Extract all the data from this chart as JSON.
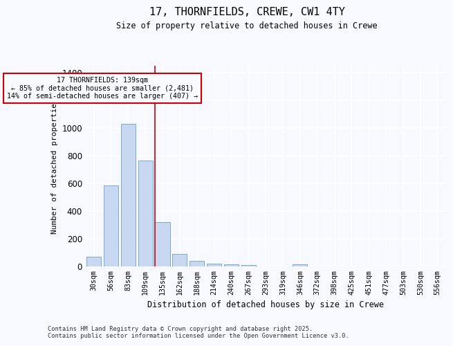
{
  "title_line1": "17, THORNFIELDS, CREWE, CW1 4TY",
  "title_line2": "Size of property relative to detached houses in Crewe",
  "xlabel": "Distribution of detached houses by size in Crewe",
  "ylabel": "Number of detached properties",
  "categories": [
    "30sqm",
    "56sqm",
    "83sqm",
    "109sqm",
    "135sqm",
    "162sqm",
    "188sqm",
    "214sqm",
    "240sqm",
    "267sqm",
    "293sqm",
    "319sqm",
    "346sqm",
    "372sqm",
    "398sqm",
    "425sqm",
    "451sqm",
    "477sqm",
    "503sqm",
    "530sqm",
    "556sqm"
  ],
  "values": [
    70,
    585,
    1030,
    765,
    320,
    90,
    40,
    22,
    13,
    8,
    0,
    0,
    14,
    0,
    0,
    0,
    0,
    0,
    0,
    0,
    0
  ],
  "bar_color": "#c8d8f0",
  "bar_edgecolor": "#7aaad0",
  "vline_x_index": 4,
  "vline_color": "#cc0000",
  "annotation_line1": "17 THORNFIELDS: 139sqm",
  "annotation_line2": "← 85% of detached houses are smaller (2,481)",
  "annotation_line3": "14% of semi-detached houses are larger (407) →",
  "annotation_box_color": "#cc0000",
  "ylim": [
    0,
    1450
  ],
  "yticks": [
    0,
    200,
    400,
    600,
    800,
    1000,
    1200,
    1400
  ],
  "bg_color": "#f7f9ff",
  "grid_color": "#ffffff",
  "footer_line1": "Contains HM Land Registry data © Crown copyright and database right 2025.",
  "footer_line2": "Contains public sector information licensed under the Open Government Licence v3.0."
}
